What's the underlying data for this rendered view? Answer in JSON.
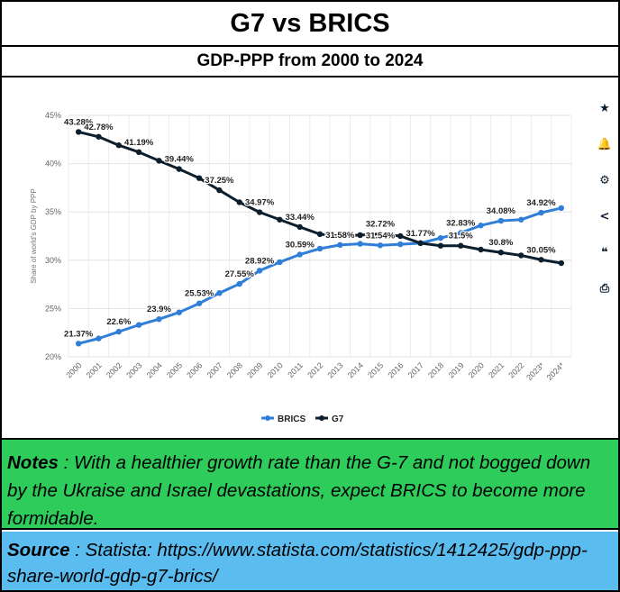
{
  "header": {
    "title": "G7 vs BRICS",
    "subtitle": "GDP-PPP from 2000 to 2024"
  },
  "toolbar": {
    "items": [
      {
        "icon": "star-icon",
        "glyph": "★"
      },
      {
        "icon": "bell-icon",
        "glyph": "🔔"
      },
      {
        "icon": "gear-icon",
        "glyph": "⚙"
      },
      {
        "icon": "share-icon",
        "glyph": "<"
      },
      {
        "icon": "quote-icon",
        "glyph": "❝"
      },
      {
        "icon": "print-icon",
        "glyph": "⎙"
      }
    ]
  },
  "chart_data": {
    "type": "line",
    "ylabel": "Share of world's GDP by PPP",
    "xlabel": "",
    "ylim": [
      20,
      45
    ],
    "yticks": [
      "20%",
      "25%",
      "30%",
      "35%",
      "40%",
      "45%"
    ],
    "categories": [
      "2000",
      "2001",
      "2002",
      "2003",
      "2004",
      "2005",
      "2006",
      "2007",
      "2008",
      "2009",
      "2010",
      "2011",
      "2012",
      "2013",
      "2014",
      "2015",
      "2016",
      "2017",
      "2018",
      "2019",
      "2020",
      "2021",
      "2022",
      "2023*",
      "2024*"
    ],
    "grid": true,
    "legend_position": "bottom-center",
    "series": [
      {
        "name": "BRICS",
        "color": "#2f7ed8",
        "values": [
          21.37,
          21.9,
          22.6,
          23.3,
          23.9,
          24.6,
          25.53,
          26.6,
          27.55,
          28.92,
          29.8,
          30.59,
          31.2,
          31.58,
          31.7,
          31.54,
          31.65,
          31.77,
          32.3,
          32.83,
          33.6,
          34.08,
          34.2,
          34.92,
          35.4
        ],
        "labels": {
          "0": "21.37%",
          "2": "22.6%",
          "4": "23.9%",
          "6": "25.53%",
          "8": "27.55%",
          "9": "28.92%",
          "11": "30.59%",
          "13": "31.58%",
          "15": "31.54%",
          "19": "32.83%",
          "21": "34.08%",
          "23": "34.92%"
        }
      },
      {
        "name": "G7",
        "color": "#0d1f2d",
        "values": [
          43.28,
          42.78,
          41.9,
          41.19,
          40.3,
          39.44,
          38.5,
          37.25,
          36.0,
          34.97,
          34.2,
          33.44,
          32.7,
          32.5,
          32.6,
          32.72,
          32.5,
          31.77,
          31.5,
          31.5,
          31.1,
          30.8,
          30.5,
          30.05,
          29.7
        ],
        "labels": {
          "0": "43.28%",
          "1": "42.78%",
          "3": "41.19%",
          "5": "39.44%",
          "7": "37.25%",
          "9": "34.97%",
          "11": "33.44%",
          "15": "32.72%",
          "17": "31.77%",
          "19": "31.5%",
          "21": "30.8%",
          "23": "30.05%"
        }
      }
    ]
  },
  "notes": {
    "label": "Notes",
    "text": " : With a healthier growth rate than the G-7 and not bogged down by the Ukraise and Israel devastations, expect BRICS to become more formidable."
  },
  "source": {
    "label": "Source",
    "text": " : Statista: https://www.statista.com/statistics/1412425/gdp-ppp-share-world-gdp-g7-brics/"
  }
}
